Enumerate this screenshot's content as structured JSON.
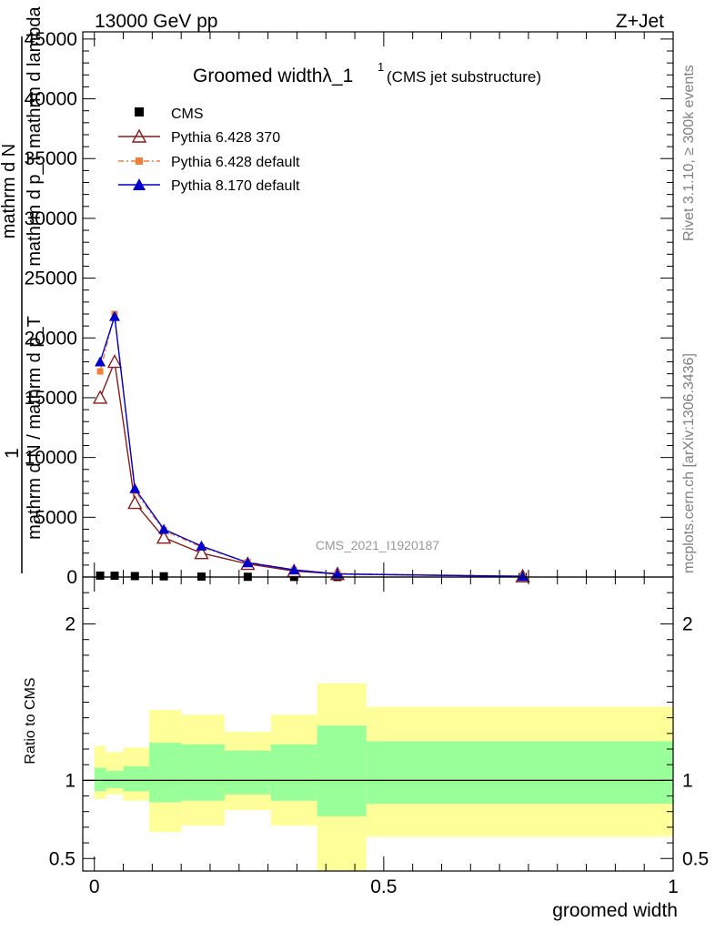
{
  "header": {
    "left": "13000 GeV pp",
    "right": "Z+Jet"
  },
  "side": {
    "rivet": "Rivet 3.1.10, ≥ 300k events",
    "mcplots": "mcplots.cern.ch [arXiv:1306.3436]"
  },
  "chart_data": [
    {
      "type": "line",
      "title_main": "Groomed widthλ_1",
      "title_sup": "1",
      "title_sub": "(CMS jet substructure)",
      "ylabel_top": "1",
      "ylabel_lines": [
        "mathrm d N / mathrm d p_T",
        "mathrm d p_T mathrm d lambda",
        "mathrm d N"
      ],
      "xlabel": "groomed width",
      "watermark": "CMS_2021_I1920187",
      "ylim": [
        0,
        45600
      ],
      "xlim": [
        -0.02,
        1.0
      ],
      "yticks": [
        {
          "v": 0,
          "label": "0"
        },
        {
          "v": 5000,
          "label": "5000"
        },
        {
          "v": 10000,
          "label": "10000"
        },
        {
          "v": 15000,
          "label": "15000"
        },
        {
          "v": 20000,
          "label": "20000"
        },
        {
          "v": 25000,
          "label": "25000"
        },
        {
          "v": 30000,
          "label": "30000"
        },
        {
          "v": 35000,
          "label": "35000"
        },
        {
          "v": 40000,
          "label": "40000"
        },
        {
          "v": 45000,
          "label": "45000"
        }
      ],
      "x": [
        0.01,
        0.035,
        0.07,
        0.12,
        0.185,
        0.265,
        0.345,
        0.42,
        0.74
      ],
      "series": [
        {
          "name": "CMS",
          "color": "#000000",
          "marker": "square",
          "values": [
            120,
            110,
            80,
            60,
            40,
            20,
            10,
            5,
            2
          ]
        },
        {
          "name": "Pythia 6.428 370",
          "color": "#8b1a1a",
          "marker": "triangle-open",
          "values": [
            15000,
            18000,
            6200,
            3300,
            2000,
            1100,
            500,
            250,
            60
          ]
        },
        {
          "name": "Pythia 6.428 default",
          "color": "#ef7f3a",
          "marker": "square-small",
          "dash": "6,3,2,3",
          "values": [
            17200,
            22000,
            7200,
            3900,
            2500,
            1250,
            600,
            300,
            70
          ]
        },
        {
          "name": "Pythia 8.170 default",
          "color": "#0000cc",
          "marker": "triangle-filled",
          "values": [
            18000,
            21800,
            7400,
            4000,
            2600,
            1200,
            600,
            250,
            60
          ]
        }
      ]
    },
    {
      "type": "area",
      "ylabel": "Ratio to CMS",
      "xlabel": "groomed width",
      "ylim": [
        0.42,
        2.3
      ],
      "xlim": [
        -0.02,
        1.0
      ],
      "yticks": [
        {
          "v": 0.5,
          "label": "0.5"
        },
        {
          "v": 1,
          "label": "1"
        },
        {
          "v": 2,
          "label": "2"
        }
      ],
      "xticks": [
        {
          "v": 0,
          "label": "0"
        },
        {
          "v": 0.5,
          "label": "0.5"
        },
        {
          "v": 1,
          "label": "1"
        }
      ],
      "bins": [
        {
          "x0": 0.0,
          "x1": 0.02,
          "y_lo": 0.88,
          "y_hi": 1.22,
          "g_lo": 0.93,
          "g_hi": 1.08
        },
        {
          "x0": 0.02,
          "x1": 0.05,
          "y_lo": 0.91,
          "y_hi": 1.18,
          "g_lo": 0.95,
          "g_hi": 1.06
        },
        {
          "x0": 0.05,
          "x1": 0.095,
          "y_lo": 0.87,
          "y_hi": 1.21,
          "g_lo": 0.93,
          "g_hi": 1.09
        },
        {
          "x0": 0.095,
          "x1": 0.15,
          "y_lo": 0.67,
          "y_hi": 1.45,
          "g_lo": 0.86,
          "g_hi": 1.24
        },
        {
          "x0": 0.15,
          "x1": 0.225,
          "y_lo": 0.71,
          "y_hi": 1.42,
          "g_lo": 0.87,
          "g_hi": 1.23
        },
        {
          "x0": 0.225,
          "x1": 0.305,
          "y_lo": 0.81,
          "y_hi": 1.31,
          "g_lo": 0.91,
          "g_hi": 1.19
        },
        {
          "x0": 0.305,
          "x1": 0.385,
          "y_lo": 0.71,
          "y_hi": 1.42,
          "g_lo": 0.87,
          "g_hi": 1.23
        },
        {
          "x0": 0.385,
          "x1": 0.47,
          "y_lo": 0.42,
          "y_hi": 1.62,
          "g_lo": 0.77,
          "g_hi": 1.35
        },
        {
          "x0": 0.47,
          "x1": 1.0,
          "y_lo": 0.64,
          "y_hi": 1.47,
          "g_lo": 0.85,
          "g_hi": 1.25
        }
      ],
      "band_colors": {
        "outer": "#ffff99",
        "inner": "#99ff99",
        "line": "#000000"
      }
    }
  ]
}
